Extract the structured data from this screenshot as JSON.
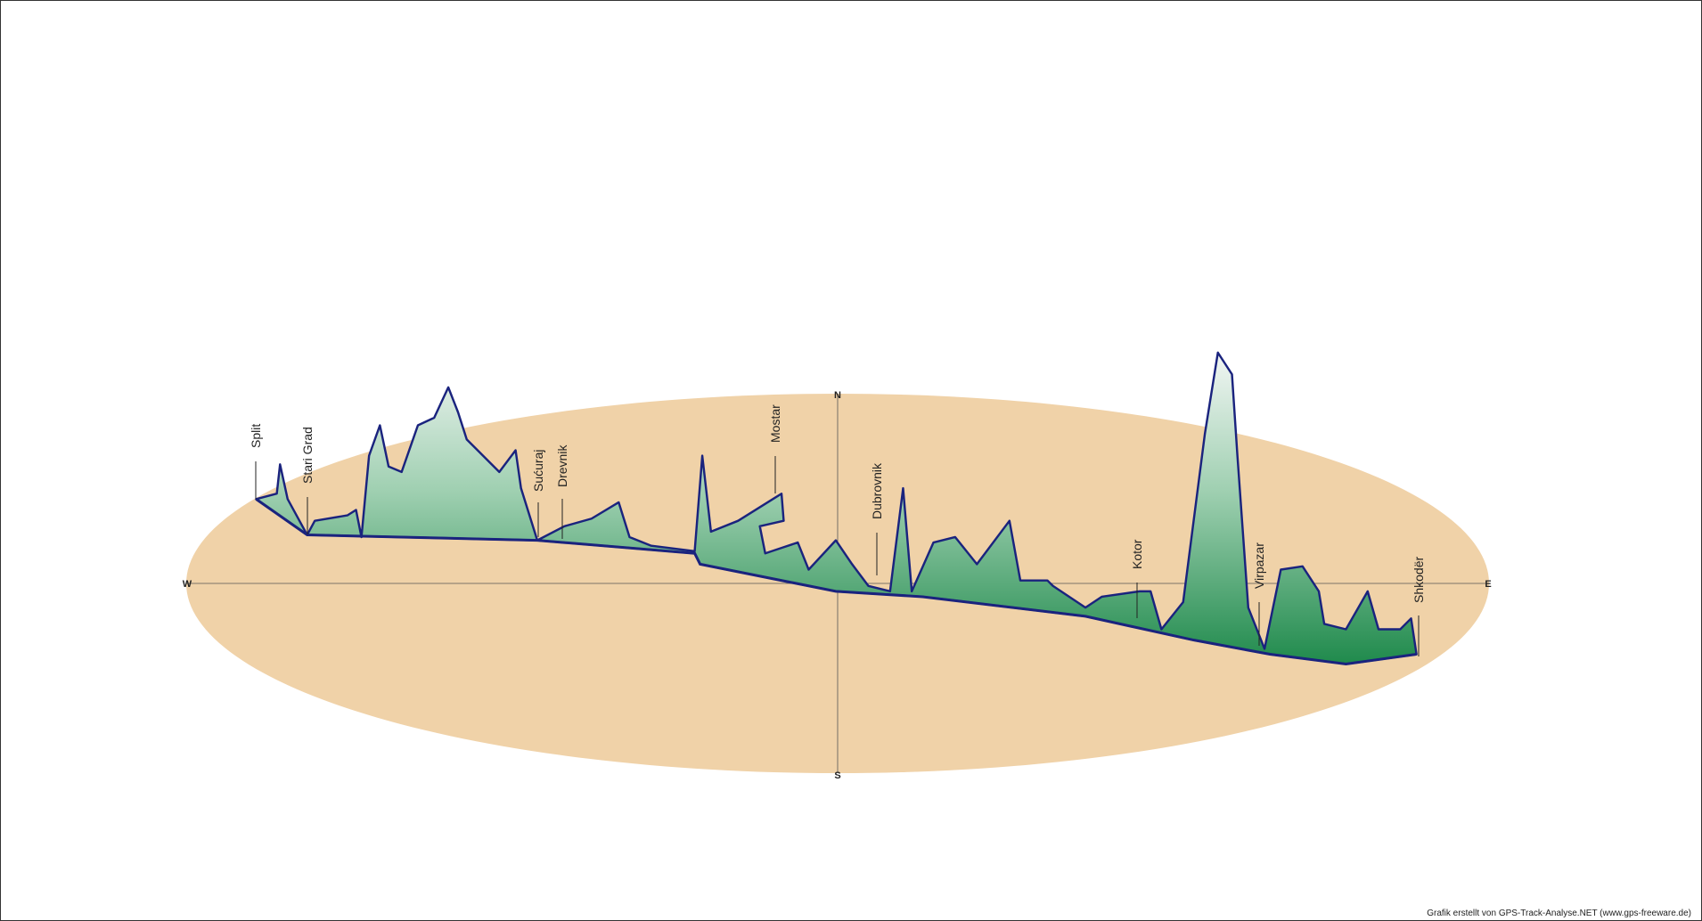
{
  "compass": {
    "north": "N",
    "south": "S",
    "west": "W",
    "east": "E"
  },
  "places": [
    "Split",
    "Stari Grad",
    "Sućuraj",
    "Drevnik",
    "Mostar",
    "Dubrovnik",
    "Kotor",
    "Virpazar",
    "Shkodër"
  ],
  "credit": "Grafik erstellt von GPS-Track-Analyse.NET (www.gps-freeware.de)"
}
